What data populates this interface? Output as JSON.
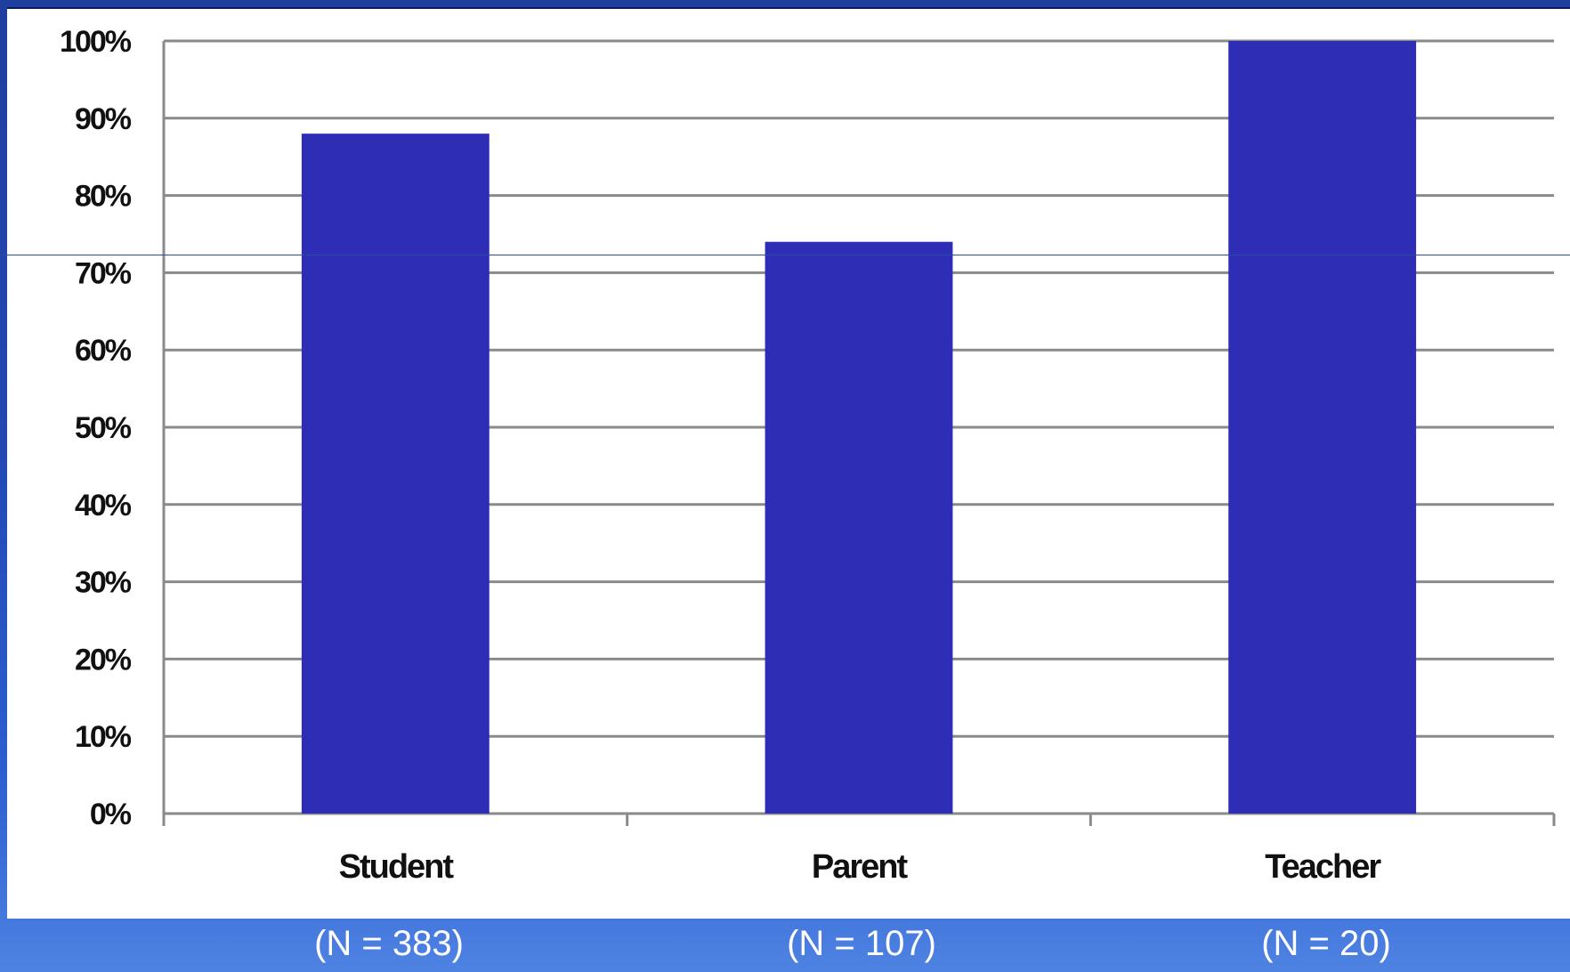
{
  "chart_data": {
    "type": "bar",
    "categories": [
      "Student",
      "Parent",
      "Teacher"
    ],
    "values": [
      88,
      74,
      100
    ],
    "ylim": [
      0,
      100
    ],
    "yticks": [
      "0%",
      "10%",
      "20%",
      "30%",
      "40%",
      "50%",
      "60%",
      "70%",
      "80%",
      "90%",
      "100%"
    ],
    "grid": true,
    "bar_color": "#2e2db5",
    "sample_sizes": [
      "(N = 383)",
      "(N = 107)",
      "(N = 20)"
    ]
  }
}
